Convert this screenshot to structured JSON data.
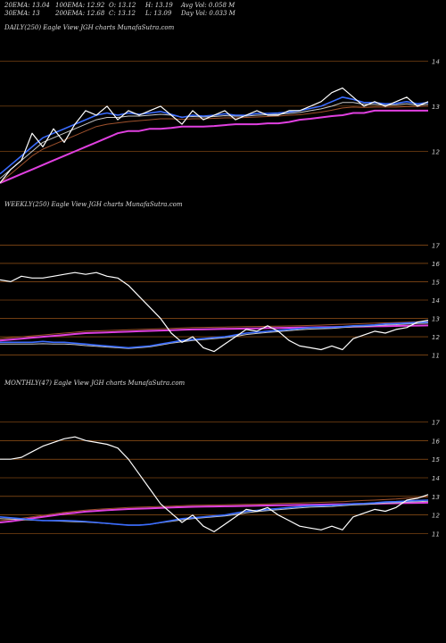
{
  "header": {
    "row1": [
      "20EMA: 13.04",
      "100EMA: 12.92",
      "O: 13.12",
      "H: 13.19",
      "Avg Vol: 0.058  M"
    ],
    "row2": [
      "30EMA: 13",
      "200EMA: 12.68",
      "C: 13.12",
      "L: 13.09",
      "Day Vol: 0.033 M"
    ]
  },
  "colors": {
    "price": "#ffffff",
    "ema_fast": "#3a6cff",
    "ema_slow": "#c9c9c9",
    "ema_brown": "#a0522d",
    "magenta": "#e040e0",
    "gridline": "#b5651d"
  },
  "chart_data": [
    {
      "type": "line",
      "title": "DAILY(250) Eagle  View  JGH charts MunafaSutra.com",
      "yticks": [
        "14",
        "13",
        "12"
      ],
      "ylim": [
        11.2,
        14.4
      ],
      "series": [
        {
          "role": "price",
          "values": [
            11.3,
            11.6,
            11.8,
            12.4,
            12.1,
            12.5,
            12.2,
            12.6,
            12.9,
            12.8,
            13.0,
            12.7,
            12.9,
            12.8,
            12.9,
            13.0,
            12.8,
            12.6,
            12.9,
            12.7,
            12.8,
            12.9,
            12.7,
            12.8,
            12.9,
            12.8,
            12.8,
            12.9,
            12.9,
            13.0,
            13.1,
            13.3,
            13.4,
            13.2,
            13.0,
            13.1,
            13.0,
            13.1,
            13.2,
            13.0,
            13.1
          ]
        },
        {
          "role": "ema_fast",
          "values": [
            11.5,
            11.7,
            11.9,
            12.1,
            12.3,
            12.4,
            12.5,
            12.6,
            12.7,
            12.8,
            12.85,
            12.8,
            12.85,
            12.82,
            12.85,
            12.88,
            12.82,
            12.75,
            12.8,
            12.78,
            12.8,
            12.83,
            12.8,
            12.8,
            12.84,
            12.84,
            12.85,
            12.87,
            12.9,
            12.95,
            13.0,
            13.1,
            13.2,
            13.15,
            13.08,
            13.08,
            13.05,
            13.06,
            13.1,
            13.05,
            13.08
          ]
        },
        {
          "role": "ema_slow",
          "values": [
            11.4,
            11.6,
            11.8,
            12.0,
            12.2,
            12.3,
            12.4,
            12.5,
            12.6,
            12.7,
            12.75,
            12.75,
            12.78,
            12.78,
            12.8,
            12.82,
            12.8,
            12.76,
            12.77,
            12.76,
            12.77,
            12.79,
            12.78,
            12.78,
            12.8,
            12.81,
            12.82,
            12.84,
            12.86,
            12.9,
            12.94,
            13.0,
            13.08,
            13.08,
            13.04,
            13.04,
            13.02,
            13.03,
            13.05,
            13.02,
            13.04
          ]
        },
        {
          "role": "ema_brown",
          "values": [
            11.3,
            11.5,
            11.7,
            11.9,
            12.05,
            12.15,
            12.25,
            12.35,
            12.45,
            12.55,
            12.6,
            12.63,
            12.66,
            12.68,
            12.7,
            12.72,
            12.72,
            12.71,
            12.72,
            12.72,
            12.73,
            12.74,
            12.74,
            12.75,
            12.76,
            12.77,
            12.78,
            12.8,
            12.81,
            12.84,
            12.87,
            12.91,
            12.96,
            12.98,
            12.97,
            12.98,
            12.98,
            12.98,
            12.99,
            12.99,
            13.0
          ]
        },
        {
          "role": "magenta",
          "values": [
            11.3,
            11.4,
            11.5,
            11.6,
            11.7,
            11.8,
            11.9,
            12.0,
            12.1,
            12.2,
            12.3,
            12.4,
            12.45,
            12.45,
            12.5,
            12.5,
            12.52,
            12.55,
            12.55,
            12.55,
            12.56,
            12.58,
            12.6,
            12.6,
            12.6,
            12.62,
            12.62,
            12.65,
            12.7,
            12.72,
            12.75,
            12.78,
            12.8,
            12.85,
            12.85,
            12.9,
            12.9,
            12.9,
            12.9,
            12.9,
            12.9
          ]
        }
      ]
    },
    {
      "type": "line",
      "title": "WEEKLY(250) Eagle  View  JGH charts MunafaSutra.com",
      "yticks": [
        "17",
        "16",
        "15",
        "14",
        "13",
        "12",
        "11"
      ],
      "ylim": [
        10.4,
        17.6
      ],
      "series": [
        {
          "role": "price",
          "values": [
            15.1,
            15.0,
            15.3,
            15.2,
            15.2,
            15.3,
            15.4,
            15.5,
            15.4,
            15.5,
            15.3,
            15.2,
            14.8,
            14.2,
            13.6,
            13.0,
            12.2,
            11.7,
            12.0,
            11.4,
            11.2,
            11.6,
            12.0,
            12.4,
            12.3,
            12.6,
            12.3,
            11.8,
            11.5,
            11.4,
            11.3,
            11.5,
            11.3,
            11.9,
            12.1,
            12.3,
            12.2,
            12.4,
            12.5,
            12.8,
            12.9
          ]
        },
        {
          "role": "ema_fast",
          "values": [
            11.7,
            11.7,
            11.7,
            11.7,
            11.75,
            11.7,
            11.7,
            11.65,
            11.6,
            11.55,
            11.5,
            11.45,
            11.4,
            11.45,
            11.5,
            11.6,
            11.7,
            11.8,
            11.85,
            11.9,
            11.95,
            12.0,
            12.1,
            12.2,
            12.25,
            12.3,
            12.35,
            12.4,
            12.45,
            12.5,
            12.5,
            12.52,
            12.55,
            12.6,
            12.62,
            12.65,
            12.7,
            12.72,
            12.75,
            12.78,
            12.8
          ]
        },
        {
          "role": "ema_slow",
          "values": [
            11.6,
            11.6,
            11.6,
            11.6,
            11.62,
            11.6,
            11.6,
            11.57,
            11.52,
            11.48,
            11.44,
            11.4,
            11.36,
            11.4,
            11.45,
            11.55,
            11.65,
            11.73,
            11.8,
            11.85,
            11.9,
            11.95,
            12.02,
            12.12,
            12.18,
            12.24,
            12.28,
            12.33,
            12.38,
            12.42,
            12.44,
            12.46,
            12.5,
            12.54,
            12.56,
            12.6,
            12.64,
            12.66,
            12.7,
            12.72,
            12.74
          ]
        },
        {
          "role": "ema_brown",
          "values": [
            11.9,
            11.95,
            12.0,
            12.05,
            12.1,
            12.15,
            12.2,
            12.25,
            12.3,
            12.32,
            12.34,
            12.36,
            12.38,
            12.4,
            12.42,
            12.44,
            12.46,
            12.48,
            12.5,
            12.51,
            12.52,
            12.53,
            12.54,
            12.55,
            12.56,
            12.57,
            12.58,
            12.59,
            12.6,
            12.62,
            12.64,
            12.66,
            12.68,
            12.7,
            12.72,
            12.74,
            12.76,
            12.78,
            12.8,
            12.82,
            12.84
          ]
        },
        {
          "role": "magenta",
          "values": [
            11.8,
            11.85,
            11.9,
            11.95,
            12.0,
            12.05,
            12.1,
            12.15,
            12.2,
            12.22,
            12.24,
            12.26,
            12.28,
            12.3,
            12.32,
            12.34,
            12.36,
            12.38,
            12.4,
            12.41,
            12.42,
            12.43,
            12.44,
            12.45,
            12.46,
            12.47,
            12.48,
            12.49,
            12.5,
            12.51,
            12.52,
            12.53,
            12.54,
            12.55,
            12.56,
            12.57,
            12.58,
            12.59,
            12.6,
            12.61,
            12.62
          ]
        }
      ]
    },
    {
      "type": "line",
      "title": "MONTHLY(47) Eagle  View  JGH charts MunafaSutra.com",
      "yticks": [
        "17",
        "16",
        "15",
        "14",
        "13",
        "12",
        "11"
      ],
      "ylim": [
        10.4,
        17.6
      ],
      "series": [
        {
          "role": "price",
          "values": [
            15.0,
            15.0,
            15.1,
            15.4,
            15.7,
            15.9,
            16.1,
            16.2,
            16.0,
            15.9,
            15.8,
            15.6,
            15.0,
            14.2,
            13.4,
            12.6,
            12.1,
            11.6,
            12.0,
            11.4,
            11.1,
            11.5,
            11.9,
            12.3,
            12.2,
            12.4,
            12.0,
            11.7,
            11.4,
            11.3,
            11.2,
            11.4,
            11.2,
            11.9,
            12.1,
            12.3,
            12.2,
            12.4,
            12.8,
            12.9,
            13.1
          ]
        },
        {
          "role": "ema_fast",
          "values": [
            11.9,
            11.85,
            11.8,
            11.75,
            11.7,
            11.7,
            11.7,
            11.68,
            11.65,
            11.6,
            11.55,
            11.5,
            11.45,
            11.45,
            11.5,
            11.6,
            11.7,
            11.8,
            11.85,
            11.9,
            11.95,
            12.0,
            12.1,
            12.2,
            12.25,
            12.3,
            12.35,
            12.4,
            12.45,
            12.5,
            12.5,
            12.52,
            12.55,
            12.6,
            12.62,
            12.65,
            12.7,
            12.72,
            12.75,
            12.78,
            12.8
          ]
        },
        {
          "role": "ema_slow",
          "values": [
            11.8,
            11.78,
            11.75,
            11.72,
            11.7,
            11.68,
            11.66,
            11.64,
            11.62,
            11.58,
            11.54,
            11.5,
            11.46,
            11.46,
            11.5,
            11.58,
            11.66,
            11.74,
            11.8,
            11.85,
            11.9,
            11.95,
            12.02,
            12.12,
            12.18,
            12.24,
            12.28,
            12.33,
            12.38,
            12.42,
            12.44,
            12.46,
            12.5,
            12.54,
            12.56,
            12.6,
            12.64,
            12.66,
            12.7,
            12.72,
            12.74
          ]
        },
        {
          "role": "ema_brown",
          "values": [
            11.7,
            11.75,
            11.82,
            11.9,
            11.98,
            12.06,
            12.14,
            12.2,
            12.26,
            12.3,
            12.34,
            12.37,
            12.4,
            12.42,
            12.44,
            12.46,
            12.48,
            12.5,
            12.52,
            12.53,
            12.54,
            12.55,
            12.56,
            12.57,
            12.58,
            12.6,
            12.62,
            12.63,
            12.64,
            12.66,
            12.68,
            12.7,
            12.72,
            12.75,
            12.78,
            12.8,
            12.83,
            12.86,
            12.9,
            12.94,
            12.98
          ]
        },
        {
          "role": "magenta",
          "values": [
            11.6,
            11.66,
            11.74,
            11.82,
            11.9,
            11.98,
            12.06,
            12.12,
            12.18,
            12.22,
            12.26,
            12.29,
            12.32,
            12.34,
            12.36,
            12.38,
            12.4,
            12.42,
            12.44,
            12.45,
            12.46,
            12.47,
            12.48,
            12.49,
            12.5,
            12.51,
            12.52,
            12.53,
            12.54,
            12.55,
            12.56,
            12.57,
            12.58,
            12.59,
            12.6,
            12.61,
            12.62,
            12.63,
            12.64,
            12.65,
            12.66
          ]
        }
      ]
    }
  ]
}
